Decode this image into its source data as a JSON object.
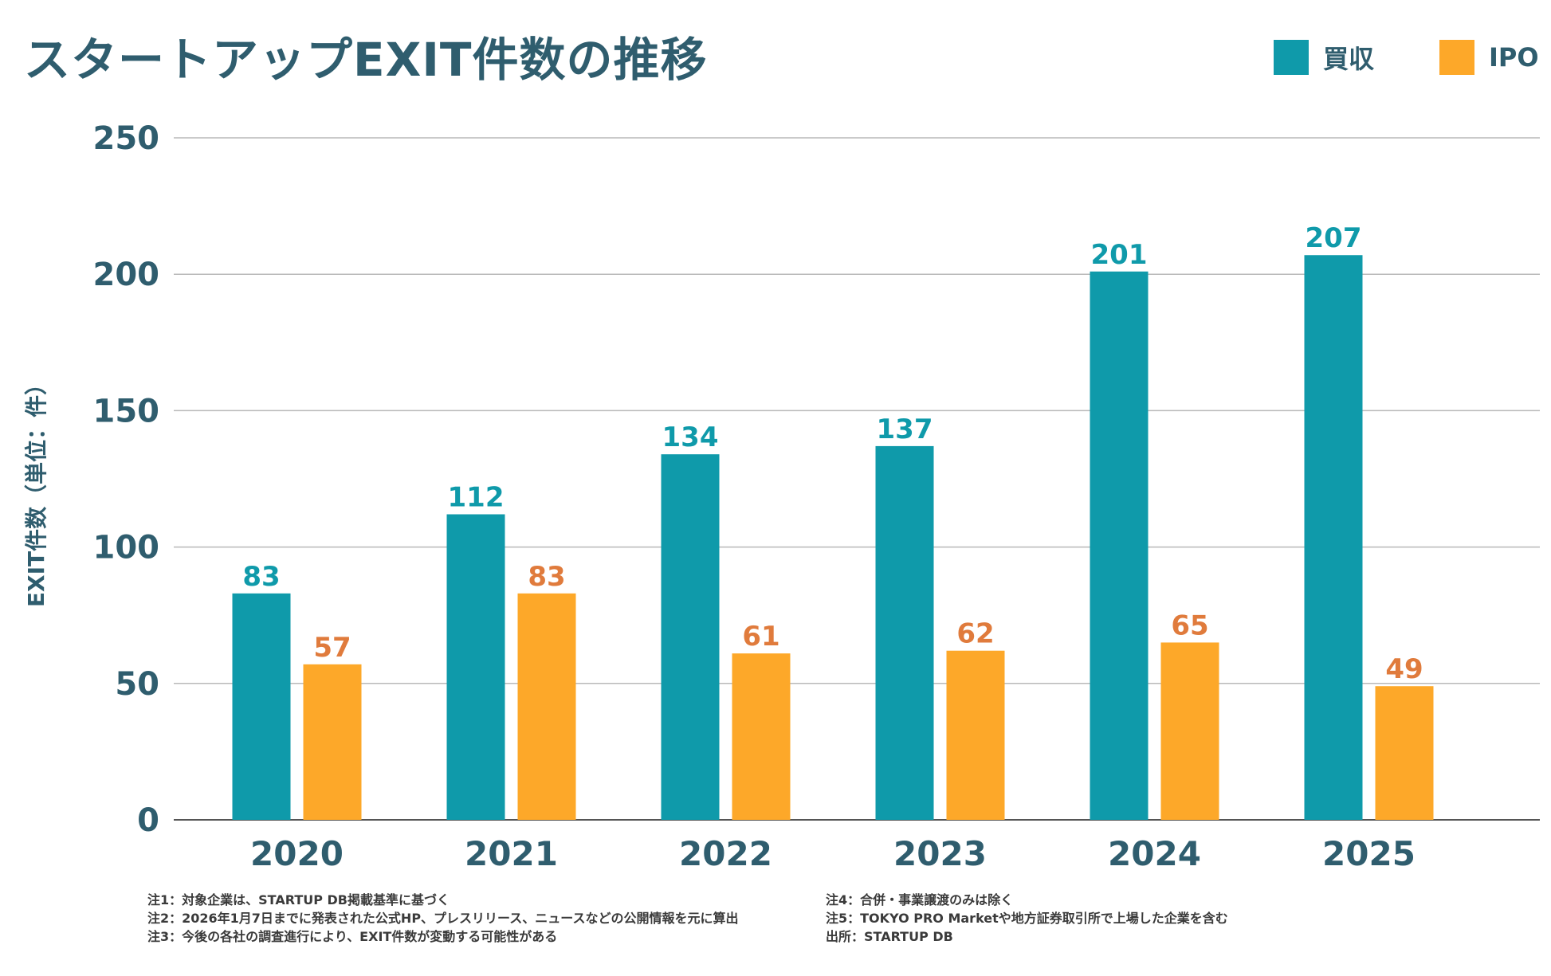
{
  "chart_data": {
    "type": "bar",
    "title": "スタートアップEXIT件数の推移",
    "xlabel": "",
    "ylabel": "EXIT件数（単位：件）",
    "categories": [
      "2020",
      "2021",
      "2022",
      "2023",
      "2024",
      "2025"
    ],
    "series": [
      {
        "name": "買収",
        "color": "#0f9aaa",
        "label_color": "#0f9aaa",
        "values": [
          83,
          112,
          134,
          137,
          201,
          207
        ]
      },
      {
        "name": "IPO",
        "color": "#fda829",
        "label_color": "#e07b3c",
        "values": [
          57,
          83,
          61,
          62,
          65,
          49
        ]
      }
    ],
    "ylim": [
      0,
      250
    ],
    "yticks": [
      0,
      50,
      100,
      150,
      200,
      250
    ],
    "grid": true,
    "legend_position": "top-right"
  },
  "notes": {
    "left": [
      "注1：対象企業は、STARTUP DB掲載基準に基づく",
      "注2：2026年1月7日までに発表された公式HP、プレスリリース、ニュースなどの公開情報を元に算出",
      "注3：今後の各社の調査進行により、EXIT件数が変動する可能性がある"
    ],
    "right": [
      "注4：合併・事業譲渡のみは除く",
      "注5：TOKYO PRO Marketや地方証券取引所で上場した企業を含む",
      "出所：STARTUP DB"
    ]
  }
}
